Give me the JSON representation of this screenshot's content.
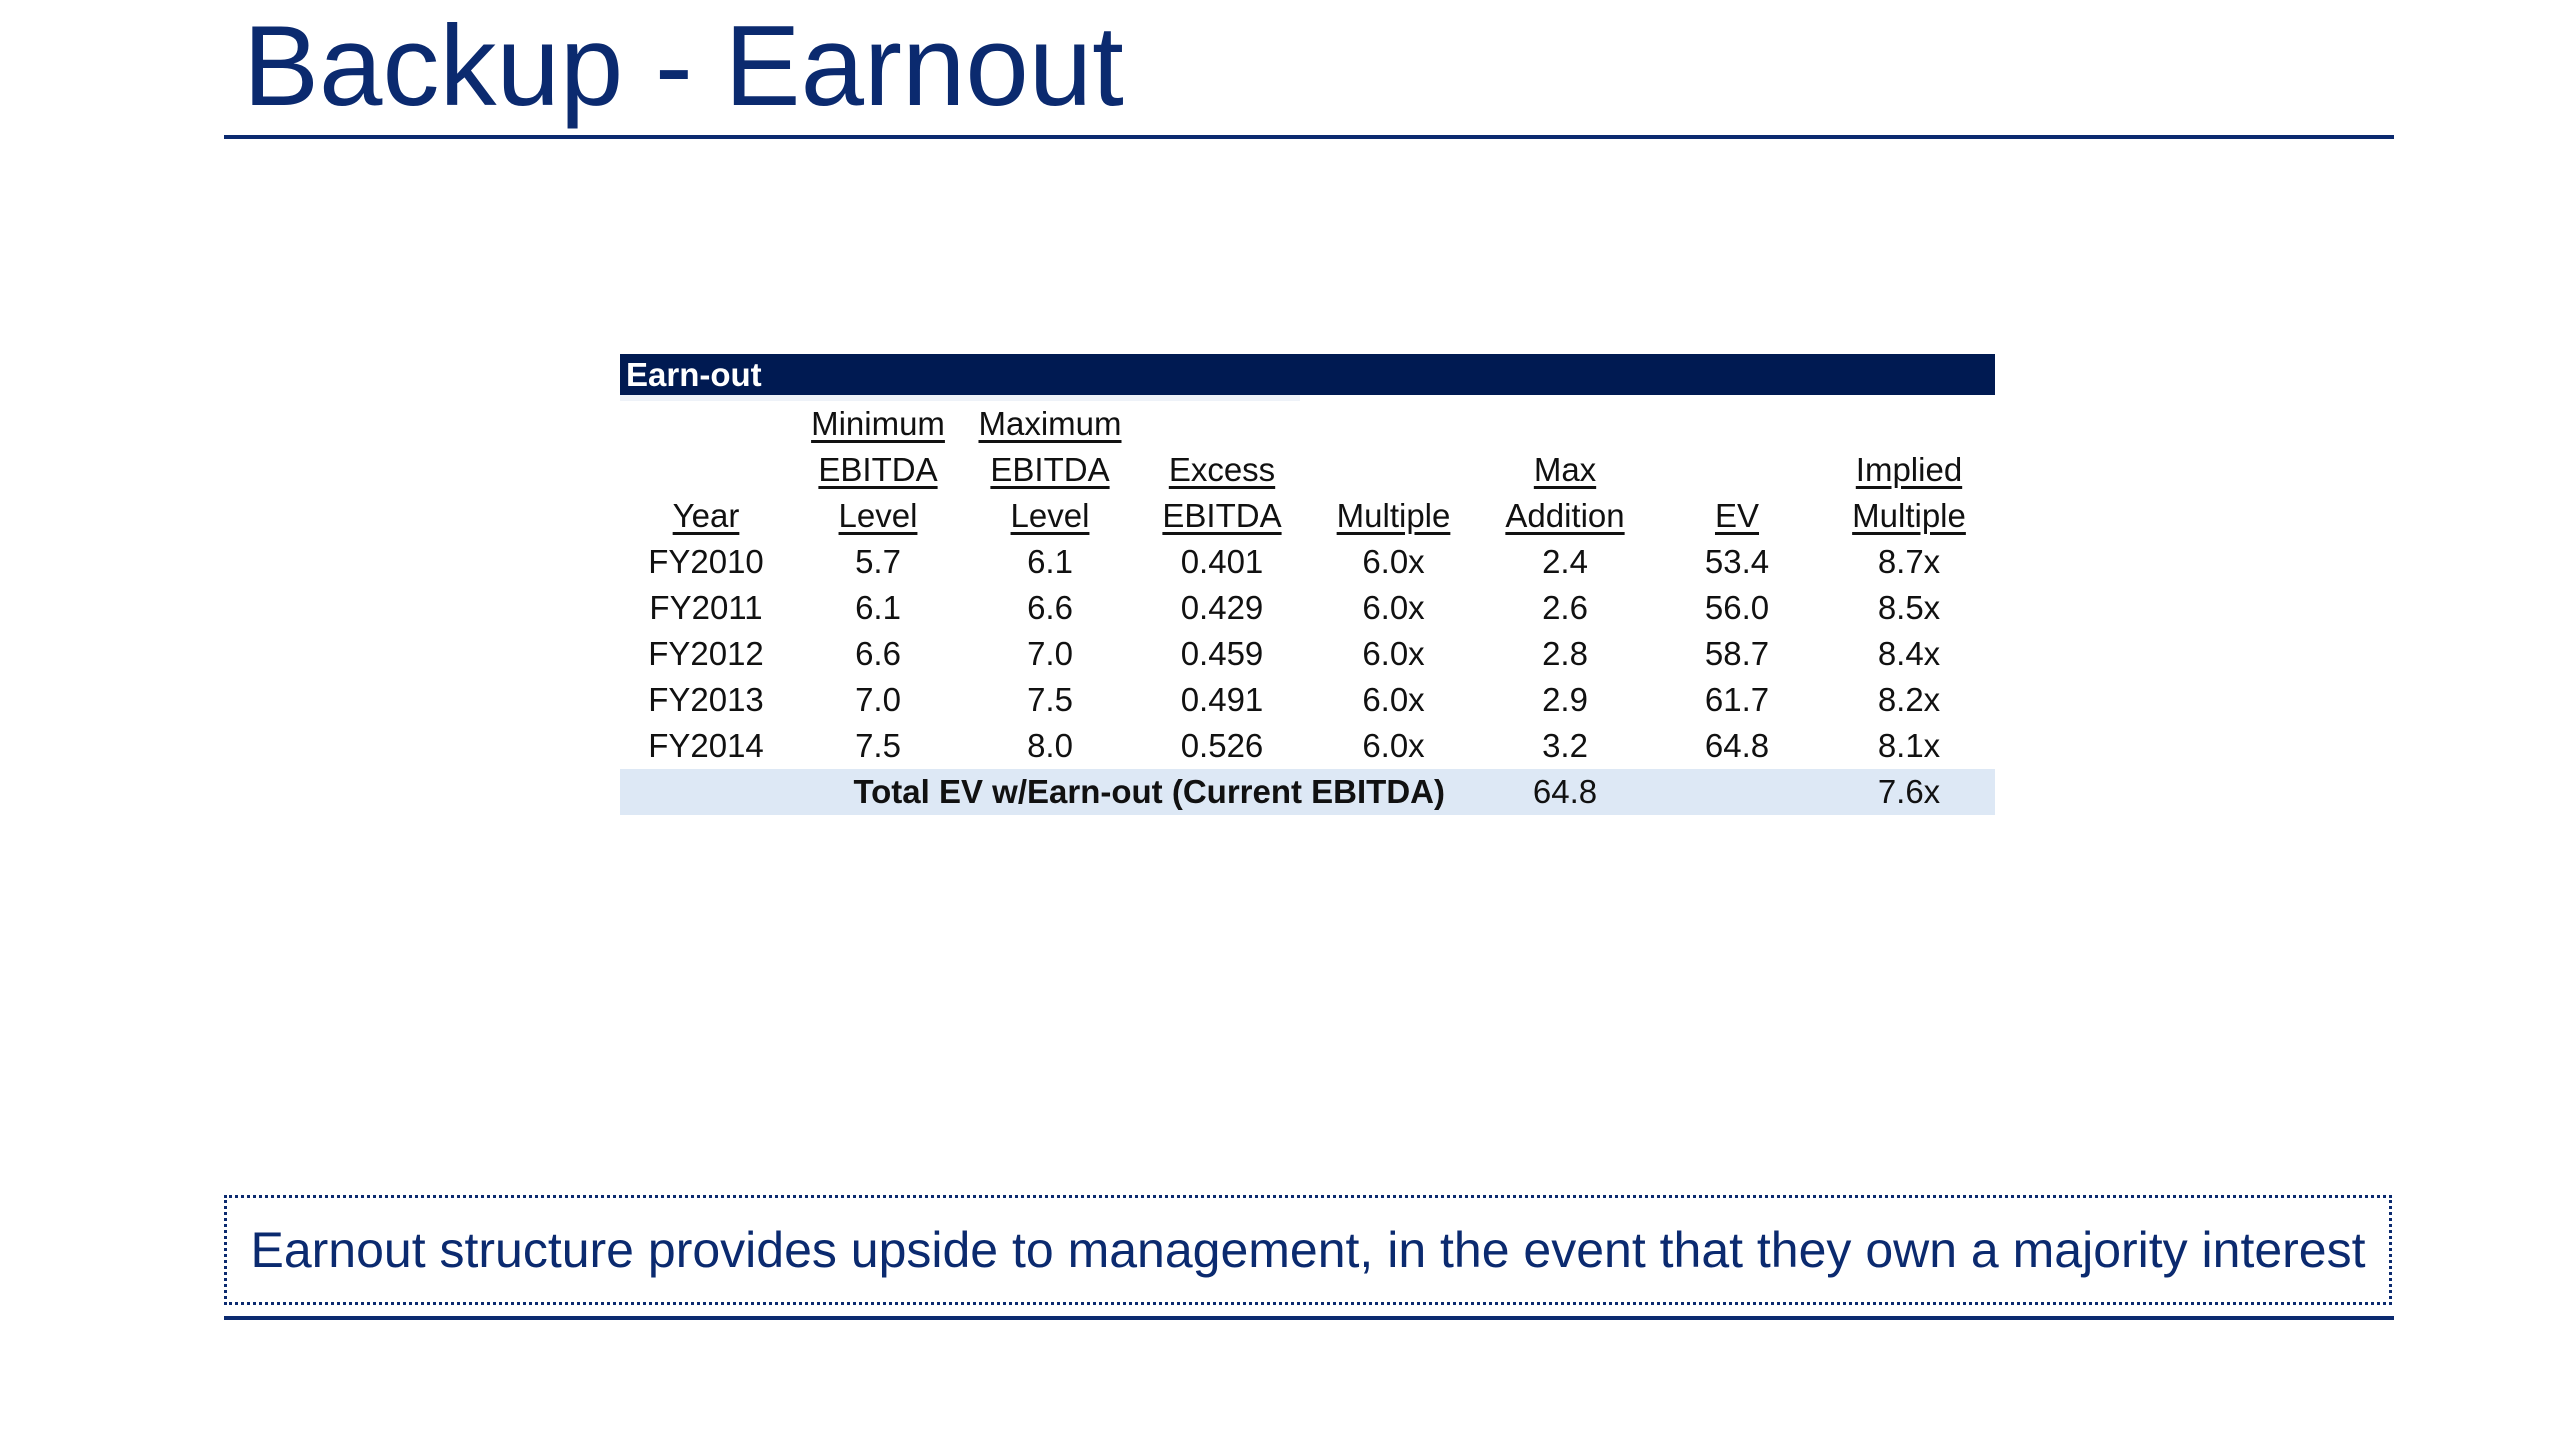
{
  "slide": {
    "title": "Backup - Earnout"
  },
  "table": {
    "banner": "Earn-out",
    "headers": {
      "year": [
        "",
        "",
        "Year"
      ],
      "min_level": [
        "Minimum",
        "EBITDA",
        "Level"
      ],
      "max_level": [
        "Maximum",
        "EBITDA",
        "Level"
      ],
      "excess": [
        "",
        "Excess",
        "EBITDA"
      ],
      "multiple": [
        "",
        "",
        "Multiple"
      ],
      "max_addition": [
        "",
        "Max",
        "Addition"
      ],
      "ev": [
        "",
        "",
        "EV"
      ],
      "implied": [
        "",
        "Implied",
        "Multiple"
      ]
    },
    "rows": [
      [
        "FY2010",
        "5.7",
        "6.1",
        "0.401",
        "6.0x",
        "2.4",
        "53.4",
        "8.7x"
      ],
      [
        "FY2011",
        "6.1",
        "6.6",
        "0.429",
        "6.0x",
        "2.6",
        "56.0",
        "8.5x"
      ],
      [
        "FY2012",
        "6.6",
        "7.0",
        "0.459",
        "6.0x",
        "2.8",
        "58.7",
        "8.4x"
      ],
      [
        "FY2013",
        "7.0",
        "7.5",
        "0.491",
        "6.0x",
        "2.9",
        "61.7",
        "8.2x"
      ],
      [
        "FY2014",
        "7.5",
        "8.0",
        "0.526",
        "6.0x",
        "3.2",
        "64.8",
        "8.1x"
      ]
    ],
    "total": {
      "label": "Total EV w/Earn-out (Current EBITDA)",
      "ev": "64.8",
      "implied_multiple": "7.6x"
    }
  },
  "callout": {
    "text": "Earnout structure provides upside to management, in the event that they own a majority interest"
  },
  "colors": {
    "brand_navy": "#0b2a6f",
    "banner_navy": "#001a52",
    "total_row_fill": "#dde8f5"
  }
}
